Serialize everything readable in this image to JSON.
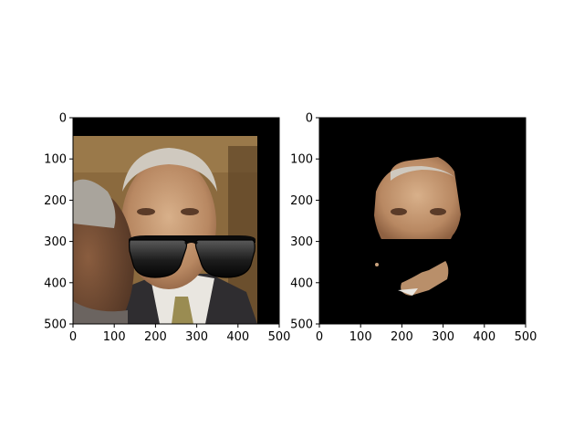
{
  "chart_data": [
    {
      "type": "image",
      "xlim": [
        0,
        500
      ],
      "ylim": [
        500,
        0
      ],
      "xticks": [
        0,
        100,
        200,
        300,
        400,
        500
      ],
      "yticks": [
        0,
        100,
        200,
        300,
        400,
        500
      ],
      "x_tick_labels": [
        "0",
        "100",
        "200",
        "300",
        "400",
        "500"
      ],
      "y_tick_labels": [
        "0",
        "100",
        "200",
        "300",
        "400",
        "500"
      ],
      "image": {
        "photo_extent": {
          "x": [
            0,
            445
          ],
          "y": [
            45,
            500
          ]
        },
        "background_color": "#000000",
        "overlay": "sunglasses",
        "sunglasses_extent": {
          "x": [
            135,
            440
          ],
          "y": [
            275,
            385
          ]
        }
      },
      "title": "",
      "xlabel": "",
      "ylabel": ""
    },
    {
      "type": "image",
      "xlim": [
        0,
        500
      ],
      "ylim": [
        500,
        0
      ],
      "xticks": [
        0,
        100,
        200,
        300,
        400,
        500
      ],
      "yticks": [
        0,
        100,
        200,
        300,
        400,
        500
      ],
      "x_tick_labels": [
        "0",
        "100",
        "200",
        "300",
        "400",
        "500"
      ],
      "y_tick_labels": [
        "0",
        "100",
        "200",
        "300",
        "400",
        "500"
      ],
      "image": {
        "background_color": "#000000",
        "face_mask_extent": {
          "x": [
            135,
            345
          ],
          "y": [
            95,
            430
          ]
        },
        "black_region_extent": {
          "x": [
            145,
            345
          ],
          "y": [
            280,
            390
          ]
        }
      },
      "title": "",
      "xlabel": "",
      "ylabel": ""
    }
  ],
  "colors": {
    "background": "#ffffff",
    "axes_edge": "#000000",
    "image_bg": "#000000",
    "skin_light": "#c9a27e",
    "skin_dark": "#7a5238",
    "hair_gray": "#cfc9bf",
    "photo_bg": "#8b6a3e",
    "suit": "#2f2d30",
    "shirt": "#e9e6e0",
    "tie": "#9a8c52"
  }
}
